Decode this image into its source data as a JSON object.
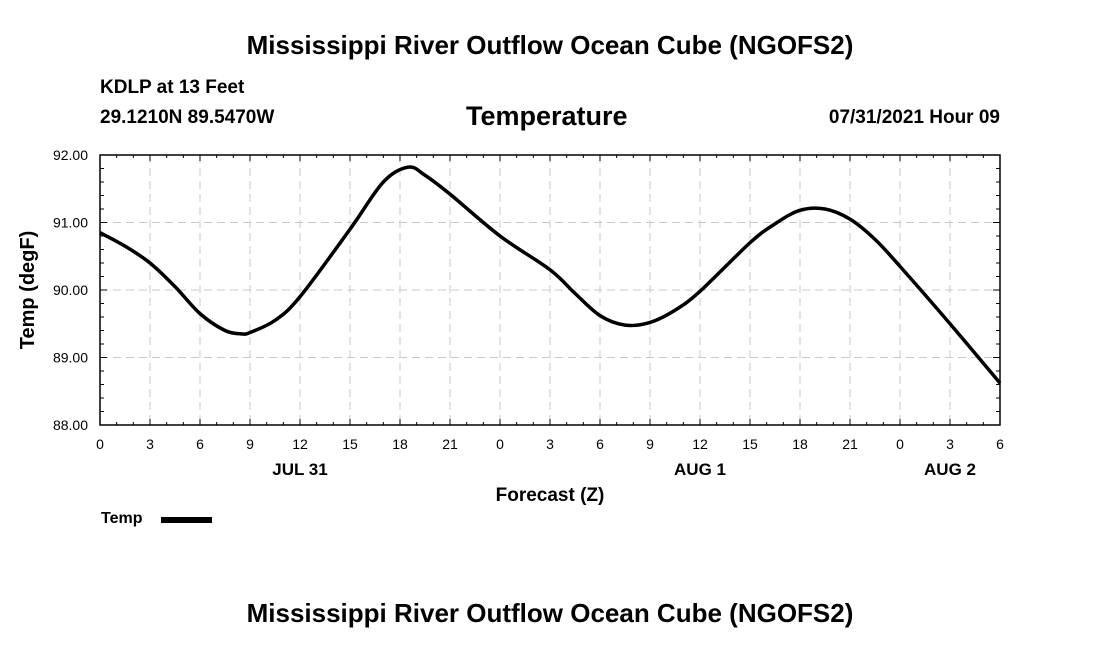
{
  "header": {
    "title": "Mississippi River Outflow Ocean Cube (NGOFS2)",
    "station": "KDLP at 13 Feet",
    "coords": "29.1210N  89.5470W",
    "variable": "Temperature",
    "timestamp": "07/31/2021 Hour 09"
  },
  "footer": {
    "title": "Mississippi River Outflow Ocean Cube (NGOFS2)"
  },
  "chart_data": {
    "type": "line",
    "xlabel": "Forecast (Z)",
    "ylabel": "Temp (degF)",
    "xlim": [
      0,
      54
    ],
    "ylim": [
      88,
      92
    ],
    "grid": true,
    "x_ticks": [
      0,
      3,
      6,
      9,
      12,
      15,
      18,
      21,
      24,
      27,
      30,
      33,
      36,
      39,
      42,
      45,
      48,
      51,
      54
    ],
    "x_tick_labels": [
      "0",
      "3",
      "6",
      "9",
      "12",
      "15",
      "18",
      "21",
      "0",
      "3",
      "6",
      "9",
      "12",
      "15",
      "18",
      "21",
      "0",
      "3",
      "6"
    ],
    "y_ticks": [
      88,
      89,
      90,
      91,
      92
    ],
    "y_tick_labels": [
      "88.00",
      "89.00",
      "90.00",
      "91.00",
      "92.00"
    ],
    "date_labels": [
      {
        "x": 12,
        "label": "JUL 31"
      },
      {
        "x": 36,
        "label": "AUG 1"
      },
      {
        "x": 51,
        "label": "AUG 2"
      }
    ],
    "legend": {
      "label": "Temp",
      "position": "bottom-left"
    },
    "series": [
      {
        "name": "Temp",
        "x": [
          0,
          1.5,
          3,
          4.5,
          6,
          7.5,
          8.5,
          9,
          10.5,
          12,
          15,
          17,
          18.5,
          19.5,
          21,
          24,
          27,
          28.5,
          30,
          31.5,
          33,
          34.5,
          36,
          39,
          40.5,
          42,
          43.5,
          45,
          46.5,
          48,
          51,
          54
        ],
        "values": [
          90.85,
          90.65,
          90.4,
          90.05,
          89.65,
          89.4,
          89.35,
          89.37,
          89.55,
          89.9,
          90.9,
          91.6,
          91.82,
          91.7,
          91.42,
          90.8,
          90.3,
          89.95,
          89.62,
          89.48,
          89.52,
          89.7,
          89.98,
          90.7,
          90.98,
          91.18,
          91.2,
          91.05,
          90.75,
          90.35,
          89.5,
          88.62
        ]
      }
    ]
  }
}
